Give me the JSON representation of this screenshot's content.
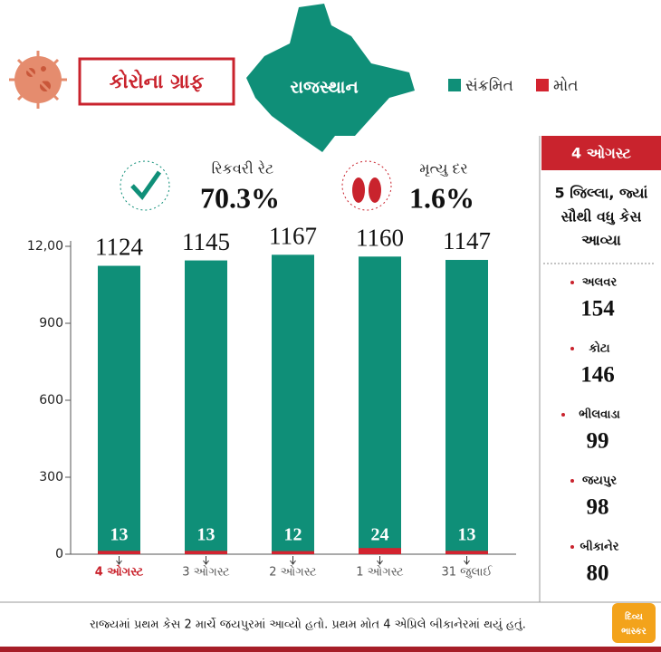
{
  "header": {
    "title": "કોરોના ગ્રાફ",
    "map_label": "રાજસ્થાન"
  },
  "stats": [
    {
      "label": "રિકવરી રેટ",
      "value": "70.3%"
    },
    {
      "label": "મૃત્યુ દર",
      "value": "1.6%"
    }
  ],
  "chart_data": {
    "type": "bar",
    "categories": [
      "4 ઓગસ્ટ",
      "3 ઓગસ્ટ",
      "2 ઓગસ્ટ",
      "1 ઓગસ્ટ",
      "31 જુલાઈ"
    ],
    "series": [
      {
        "name": "સંક્રમિત",
        "color": "#0f8f78",
        "values": [
          1124,
          1145,
          1167,
          1160,
          1147
        ]
      },
      {
        "name": "મોત",
        "color": "#d3232f",
        "values": [
          13,
          13,
          12,
          24,
          13
        ]
      }
    ],
    "ylim": [
      0,
      1200
    ],
    "yticks": [
      0,
      300,
      600,
      900,
      {
        "value": 1200,
        "label": "12,00"
      }
    ]
  },
  "sidebar": {
    "date": "4 ઓગસ્ટ",
    "heading": [
      "5 જિલ્લા, જ્યાં",
      "સૌથી વધુ કેસ",
      "આવ્યા"
    ],
    "districts": [
      {
        "name": "અલવર",
        "value": "154"
      },
      {
        "name": "કોટા",
        "value": "146"
      },
      {
        "name": "ભીલવાડા",
        "value": "99"
      },
      {
        "name": "જયપુર",
        "value": "98"
      },
      {
        "name": "બીકાનેર",
        "value": "80"
      }
    ]
  },
  "footer": {
    "note": "રાજ્યમાં પ્રથમ કેસ 2 માર્ચે જયપુરમાં આવ્યો હતો. પ્રથમ મોત 4 એપ્રિલે બીકાનેરમાં થયું હતું.",
    "logo": [
      "દિવ્ય",
      "ભાસ્કર"
    ]
  }
}
